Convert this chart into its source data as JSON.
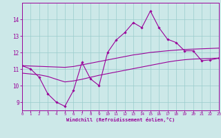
{
  "title": "",
  "xlabel": "Windchill (Refroidissement éolien,°C)",
  "ylabel": "",
  "bg_color": "#cce8e8",
  "line_color": "#990099",
  "grid_color": "#99cccc",
  "x_data": [
    0,
    1,
    2,
    3,
    4,
    5,
    6,
    7,
    8,
    9,
    10,
    11,
    12,
    13,
    14,
    15,
    16,
    17,
    18,
    19,
    20,
    21,
    22,
    23
  ],
  "y_zigzag": [
    11.2,
    11.0,
    10.5,
    9.5,
    9.0,
    8.75,
    9.7,
    11.4,
    10.4,
    10.0,
    12.0,
    12.75,
    13.2,
    13.8,
    13.5,
    14.5,
    13.5,
    12.8,
    12.6,
    12.1,
    12.1,
    11.5,
    11.55,
    11.65
  ],
  "y_upper": [
    11.2,
    11.18,
    11.16,
    11.14,
    11.12,
    11.1,
    11.15,
    11.25,
    11.35,
    11.45,
    11.55,
    11.65,
    11.75,
    11.85,
    11.92,
    12.0,
    12.05,
    12.1,
    12.14,
    12.18,
    12.2,
    12.22,
    12.24,
    12.26
  ],
  "y_lower": [
    10.75,
    10.7,
    10.65,
    10.55,
    10.38,
    10.22,
    10.28,
    10.38,
    10.5,
    10.62,
    10.72,
    10.82,
    10.92,
    11.02,
    11.12,
    11.22,
    11.32,
    11.42,
    11.5,
    11.56,
    11.6,
    11.62,
    11.64,
    11.66
  ],
  "xlim": [
    0,
    23
  ],
  "ylim": [
    8.5,
    15.0
  ],
  "yticks": [
    9,
    10,
    11,
    12,
    13,
    14
  ]
}
